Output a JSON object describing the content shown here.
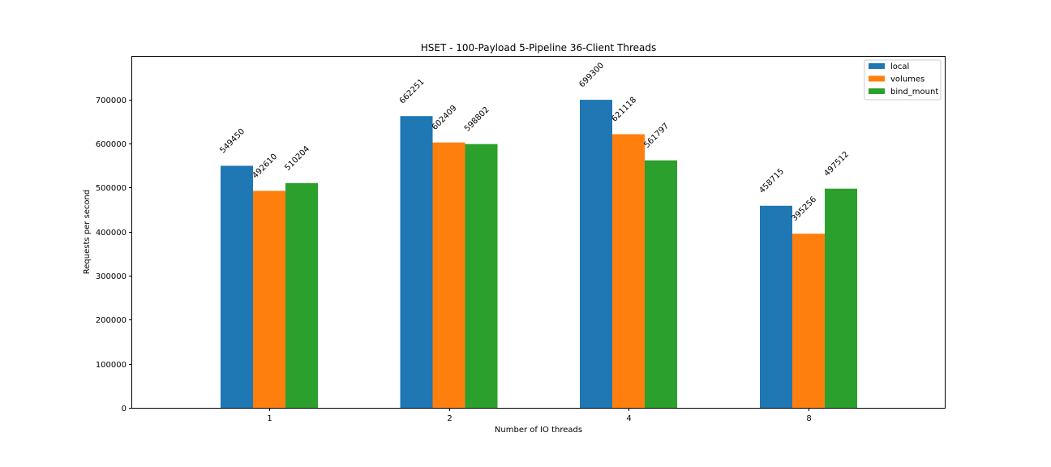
{
  "chart_data": {
    "type": "bar",
    "title": "HSET - 100-Payload 5-Pipeline 36-Client Threads",
    "xlabel": "Number of IO threads",
    "ylabel": "Requests per second",
    "categories": [
      "1",
      "2",
      "4",
      "8"
    ],
    "series": [
      {
        "name": "local",
        "color": "#1f77b4",
        "values": [
          549450,
          662251,
          699300,
          458715
        ]
      },
      {
        "name": "volumes",
        "color": "#ff7f0e",
        "values": [
          492610,
          602409,
          621118,
          395256
        ]
      },
      {
        "name": "bind_mount",
        "color": "#2ca02c",
        "values": [
          510204,
          598802,
          561797,
          497512
        ]
      }
    ],
    "ylim": [
      0,
      797000
    ],
    "yticks": [
      0,
      100000,
      200000,
      300000,
      400000,
      500000,
      600000,
      700000
    ],
    "grid": false,
    "legend_position": "top-right",
    "data_labels": true
  }
}
